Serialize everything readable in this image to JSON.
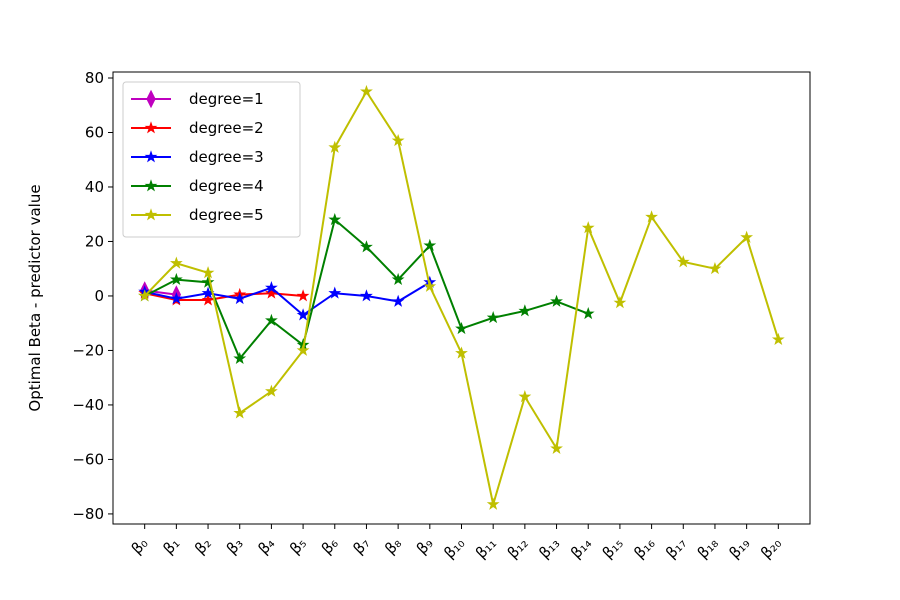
{
  "chart_data": {
    "type": "line",
    "y_label": "Optimal Beta - predictor value",
    "categories": [
      "β₀",
      "β₁",
      "β₂",
      "β₃",
      "β₄",
      "β₅",
      "β₆",
      "β₇",
      "β₈",
      "β₉",
      "β₁₀",
      "β₁₁",
      "β₁₂",
      "β₁₃",
      "β₁₄",
      "β₁₅",
      "β₁₆",
      "β₁₇",
      "β₁₈",
      "β₁₉",
      "β₂₀"
    ],
    "series": [
      {
        "name": "degree=1",
        "color": "#bf00bf",
        "marker": "diamond",
        "values": [
          2,
          0.5,
          null,
          null,
          null,
          null,
          null,
          null,
          null,
          null,
          null,
          null,
          null,
          null,
          null,
          null,
          null,
          null,
          null,
          null,
          null
        ]
      },
      {
        "name": "degree=2",
        "color": "#ff0000",
        "marker": "star",
        "values": [
          1,
          -1.5,
          -1.5,
          0.5,
          1,
          0,
          null,
          null,
          null,
          null,
          null,
          null,
          null,
          null,
          null,
          null,
          null,
          null,
          null,
          null,
          null
        ]
      },
      {
        "name": "degree=3",
        "color": "#0000ff",
        "marker": "star",
        "values": [
          1.5,
          -1,
          1,
          -1,
          3,
          -7,
          1,
          0,
          -2,
          5,
          null,
          null,
          null,
          null,
          null,
          null,
          null,
          null,
          null,
          null,
          null
        ]
      },
      {
        "name": "degree=4",
        "color": "#008000",
        "marker": "star",
        "values": [
          0,
          6,
          5,
          -23,
          -9,
          -18,
          28,
          18,
          6,
          18.5,
          -12,
          -8,
          -5.5,
          -2,
          -6.5,
          null,
          null,
          null,
          null,
          null,
          null
        ]
      },
      {
        "name": "degree=5",
        "color": "#bfbf00",
        "marker": "star",
        "values": [
          0,
          12,
          8.5,
          -43,
          -35,
          -20,
          54.5,
          75,
          57,
          3.5,
          -21,
          -76.5,
          -37,
          -56,
          25,
          -2.5,
          29,
          12.5,
          10,
          21.5,
          -16
        ]
      }
    ],
    "xlim": [
      -1,
      21
    ],
    "ylim": [
      -83.7,
      82.2
    ],
    "yticks": [
      {
        "value": -80,
        "label": "−80"
      },
      {
        "value": -60,
        "label": "−60"
      },
      {
        "value": -40,
        "label": "−40"
      },
      {
        "value": -20,
        "label": "−20"
      },
      0,
      20,
      40,
      60,
      80
    ],
    "legend": "upper left",
    "grid": false
  }
}
